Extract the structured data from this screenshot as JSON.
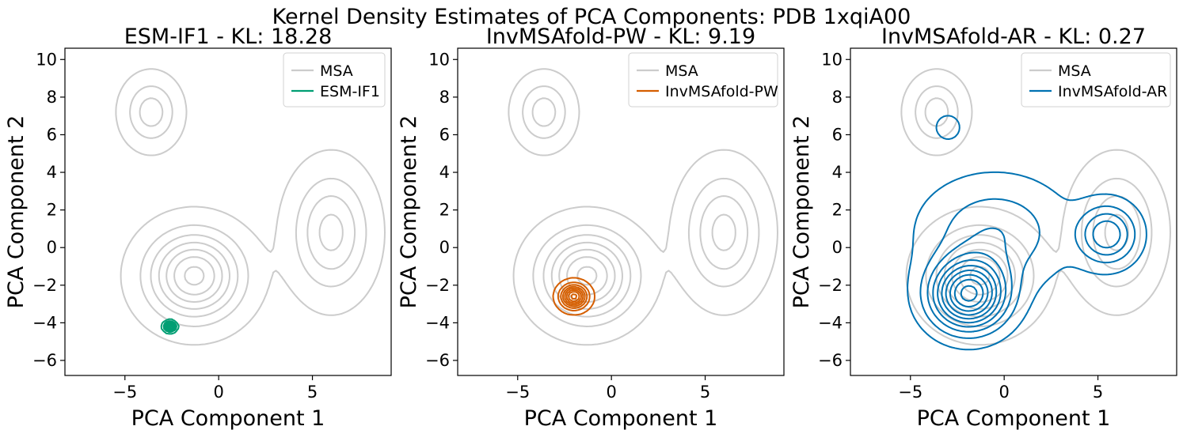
{
  "figure": {
    "suptitle": "Kernel Density Estimates of PCA Components: PDB 1xqiA00"
  },
  "colors": {
    "msa": "#cccccc",
    "esm": "#009e73",
    "pw": "#d55e00",
    "ar": "#0072b2"
  },
  "chart_data": [
    {
      "type": "kde-contour",
      "title": "ESM-IF1 - KL: 18.28",
      "xlabel": "PCA Component 1",
      "ylabel": "PCA Component 2",
      "xlim": [
        -8.2,
        9.2
      ],
      "ylim": [
        -6.8,
        10.6
      ],
      "xticks": [
        -5,
        0,
        5
      ],
      "xtick_labels": [
        "−5",
        "0",
        "5"
      ],
      "yticks": [
        -6,
        -4,
        -2,
        0,
        2,
        4,
        6,
        8,
        10
      ],
      "ytick_labels": [
        "−6",
        "−4",
        "−2",
        "0",
        "2",
        "4",
        "6",
        "8",
        "10"
      ],
      "legend_position": "upper-right",
      "series": [
        {
          "name": "MSA",
          "color_key": "msa",
          "modes": [
            {
              "x": 6.0,
              "y": 0.8,
              "sx": 1.3,
              "sy": 2.0,
              "w": 0.28
            },
            {
              "x": -1.3,
              "y": -1.5,
              "sx": 1.6,
              "sy": 1.5,
              "w": 0.5
            },
            {
              "x": -3.6,
              "y": 7.2,
              "sx": 0.9,
              "sy": 1.1,
              "w": 0.22
            }
          ]
        },
        {
          "name": "ESM-IF1",
          "color_key": "esm",
          "modes": [
            {
              "x": -2.6,
              "y": -4.2,
              "sx": 0.18,
              "sy": 0.15,
              "w": 1.0
            }
          ]
        }
      ]
    },
    {
      "type": "kde-contour",
      "title": "InvMSAfold-PW - KL: 9.19",
      "xlabel": "PCA Component 1",
      "ylabel": "PCA Component 2",
      "xlim": [
        -8.2,
        9.2
      ],
      "ylim": [
        -6.8,
        10.6
      ],
      "xticks": [
        -5,
        0,
        5
      ],
      "xtick_labels": [
        "−5",
        "0",
        "5"
      ],
      "yticks": [
        -6,
        -4,
        -2,
        0,
        2,
        4,
        6,
        8,
        10
      ],
      "ytick_labels": [
        "−6",
        "−4",
        "−2",
        "0",
        "2",
        "4",
        "6",
        "8",
        "10"
      ],
      "legend_position": "upper-right",
      "series": [
        {
          "name": "MSA",
          "color_key": "msa",
          "modes": [
            {
              "x": 6.0,
              "y": 0.8,
              "sx": 1.3,
              "sy": 2.0,
              "w": 0.28
            },
            {
              "x": -1.3,
              "y": -1.5,
              "sx": 1.6,
              "sy": 1.5,
              "w": 0.5
            },
            {
              "x": -3.6,
              "y": 7.2,
              "sx": 0.9,
              "sy": 1.1,
              "w": 0.22
            }
          ]
        },
        {
          "name": "InvMSAfold-PW",
          "color_key": "pw",
          "modes": [
            {
              "x": -2.0,
              "y": -2.6,
              "sx": 0.45,
              "sy": 0.4,
              "w": 1.0
            }
          ]
        }
      ]
    },
    {
      "type": "kde-contour",
      "title": "InvMSAfold-AR - KL: 0.27",
      "xlabel": "PCA Component 1",
      "ylabel": "PCA Component 2",
      "xlim": [
        -8.2,
        9.2
      ],
      "ylim": [
        -6.8,
        10.6
      ],
      "xticks": [
        -5,
        0,
        5
      ],
      "xtick_labels": [
        "−5",
        "0",
        "5"
      ],
      "yticks": [
        -6,
        -4,
        -2,
        0,
        2,
        4,
        6,
        8,
        10
      ],
      "ytick_labels": [
        "−6",
        "−4",
        "−2",
        "0",
        "2",
        "4",
        "6",
        "8",
        "10"
      ],
      "legend_position": "upper-right",
      "series": [
        {
          "name": "MSA",
          "color_key": "msa",
          "modes": [
            {
              "x": 6.0,
              "y": 0.8,
              "sx": 1.3,
              "sy": 2.0,
              "w": 0.28
            },
            {
              "x": -1.3,
              "y": -1.5,
              "sx": 1.6,
              "sy": 1.5,
              "w": 0.5
            },
            {
              "x": -3.6,
              "y": 7.2,
              "sx": 0.9,
              "sy": 1.1,
              "w": 0.22
            }
          ]
        },
        {
          "name": "InvMSAfold-AR",
          "color_key": "ar",
          "modes": [
            {
              "x": -1.9,
              "y": -2.5,
              "sx": 1.3,
              "sy": 1.2,
              "w": 0.55
            },
            {
              "x": 5.5,
              "y": 0.7,
              "sx": 1.0,
              "sy": 1.0,
              "w": 0.25
            },
            {
              "x": -3.0,
              "y": 6.4,
              "sx": 0.5,
              "sy": 0.5,
              "w": 0.06
            },
            {
              "x": -0.5,
              "y": 0.8,
              "sx": 2.4,
              "sy": 1.8,
              "w": 0.14
            }
          ]
        }
      ]
    }
  ]
}
